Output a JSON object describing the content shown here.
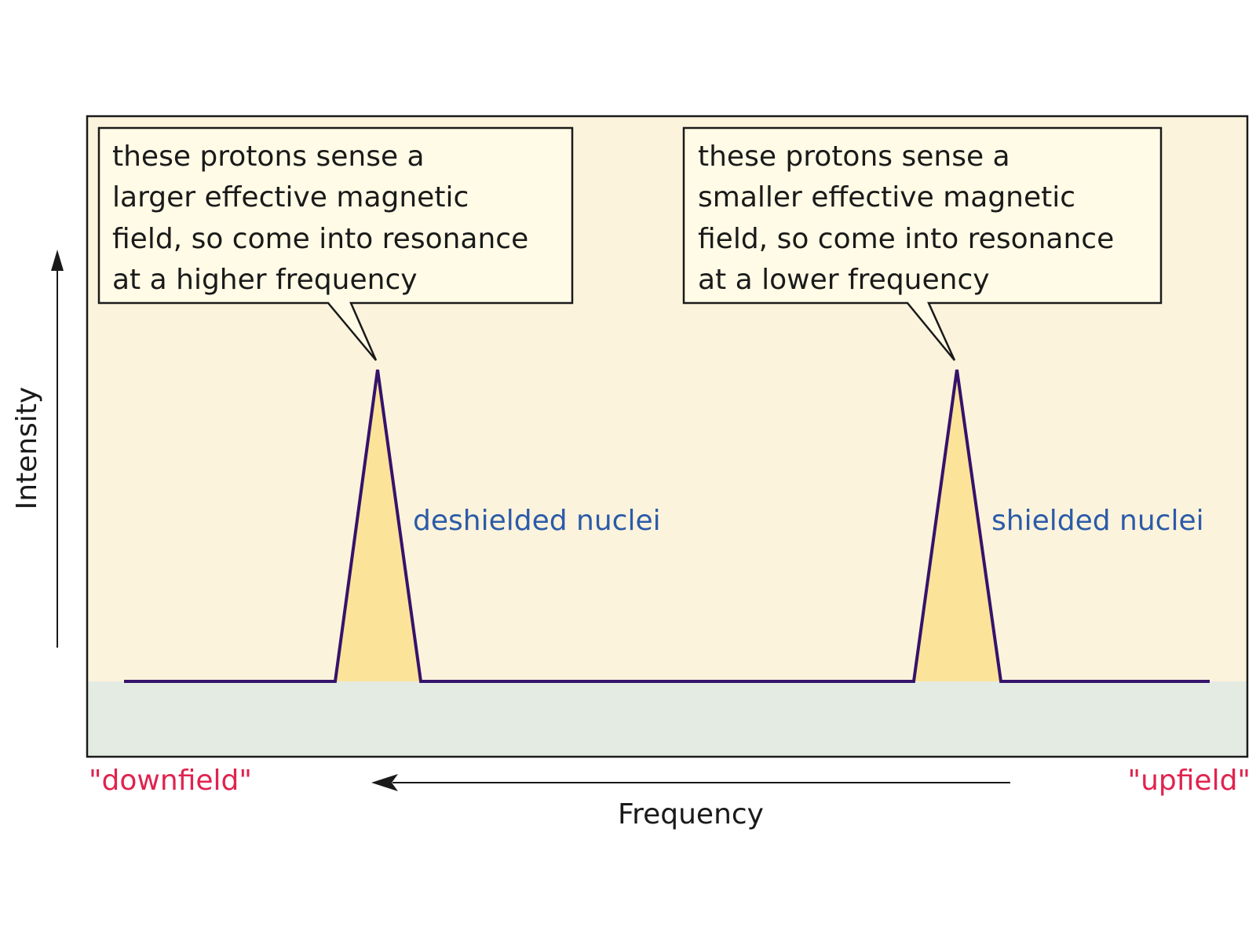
{
  "callouts": [
    {
      "lines": [
        "these protons sense a",
        "larger effective magnetic",
        "field, so come into resonance",
        "at a higher frequency"
      ]
    },
    {
      "lines": [
        "these protons sense a",
        "smaller effective magnetic",
        "field, so come into resonance",
        "at a lower frequency"
      ]
    }
  ],
  "peaks": {
    "left_label": "deshielded nuclei",
    "right_label": "shielded nuclei"
  },
  "axes": {
    "y_label": "Intensity",
    "x_label": "Frequency",
    "left_end_label": "\"downfield\"",
    "right_end_label": "\"upfield\""
  },
  "colors": {
    "plot_background": "#fcf3dc",
    "baseline_band": "#e4ebe3",
    "callout_fill": "#fffbe6",
    "peak_fill": "#fce39a",
    "spectrum_line": "#35136b",
    "peak_label": "#2b5ba8",
    "field_label": "#e0234e",
    "axis_arrow": "#1a1a1a"
  }
}
